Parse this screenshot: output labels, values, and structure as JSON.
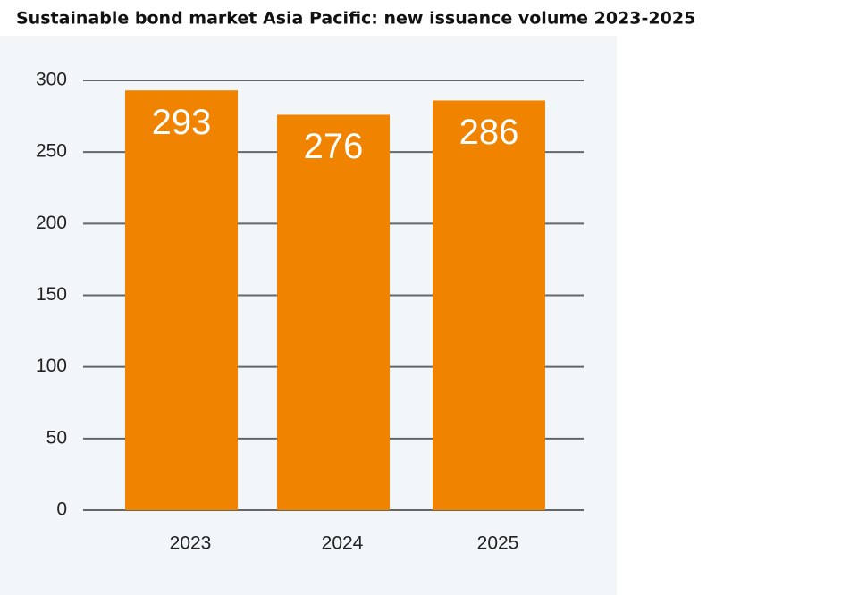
{
  "chart_data": {
    "type": "bar",
    "title": "Sustainable bond market Asia Pacific: new issuance volume 2023-2025",
    "categories": [
      "2023",
      "2024",
      "2025"
    ],
    "values": [
      293,
      276,
      286
    ],
    "color": "#f08300",
    "ylim": [
      0,
      300
    ],
    "yticks": [
      0,
      50,
      100,
      150,
      200,
      250,
      300
    ],
    "grid": true
  }
}
